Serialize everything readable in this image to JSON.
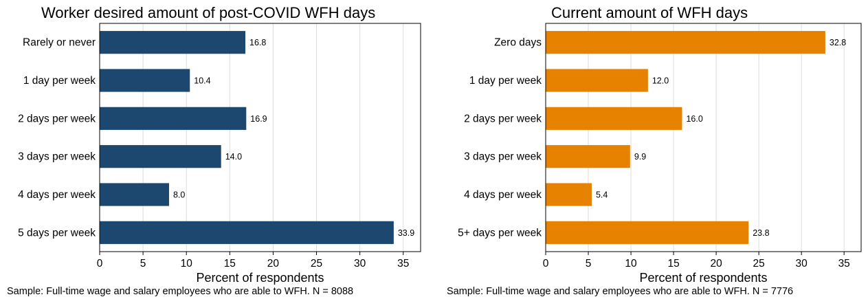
{
  "colors": {
    "left_bar": "#1c4870",
    "right_bar": "#e68200",
    "grid": "#dcdcdc",
    "frame": "#000000"
  },
  "chart_data": [
    {
      "type": "bar",
      "orientation": "horizontal",
      "title": "Worker desired amount of post-COVID WFH days",
      "categories": [
        "Rarely or never",
        "1 day per week",
        "2 days per week",
        "3 days per week",
        "4 days per week",
        "5 days per week"
      ],
      "values": [
        16.8,
        10.4,
        16.9,
        14.0,
        8.0,
        33.9
      ],
      "value_labels": [
        "16.8",
        "10.4",
        "16.9",
        "14.0",
        "8.0",
        "33.9"
      ],
      "xlabel": "Percent of respondents",
      "ylabel": "",
      "xlim": [
        0,
        37
      ],
      "xticks": [
        0,
        5,
        10,
        15,
        20,
        25,
        30,
        35
      ],
      "grid": "vertical",
      "bar_color": "#1c4870",
      "footnote": "Sample: Full-time wage and salary employees who are able to WFH. N = 8088"
    },
    {
      "type": "bar",
      "orientation": "horizontal",
      "title": "Current amount of WFH days",
      "categories": [
        "Zero days",
        "1 day per week",
        "2 days per week",
        "3 days per week",
        "4 days per week",
        "5+ days per week"
      ],
      "values": [
        32.8,
        12.0,
        16.0,
        9.9,
        5.4,
        23.8
      ],
      "value_labels": [
        "32.8",
        "12.0",
        "16.0",
        "9.9",
        "5.4",
        "23.8"
      ],
      "xlabel": "Percent of respondents",
      "ylabel": "",
      "xlim": [
        0,
        37
      ],
      "xticks": [
        0,
        5,
        10,
        15,
        20,
        25,
        30,
        35
      ],
      "grid": "vertical",
      "bar_color": "#e68200",
      "footnote": "Sample: Full-time wage and salary employees who are able to WFH. N = 7776"
    }
  ]
}
